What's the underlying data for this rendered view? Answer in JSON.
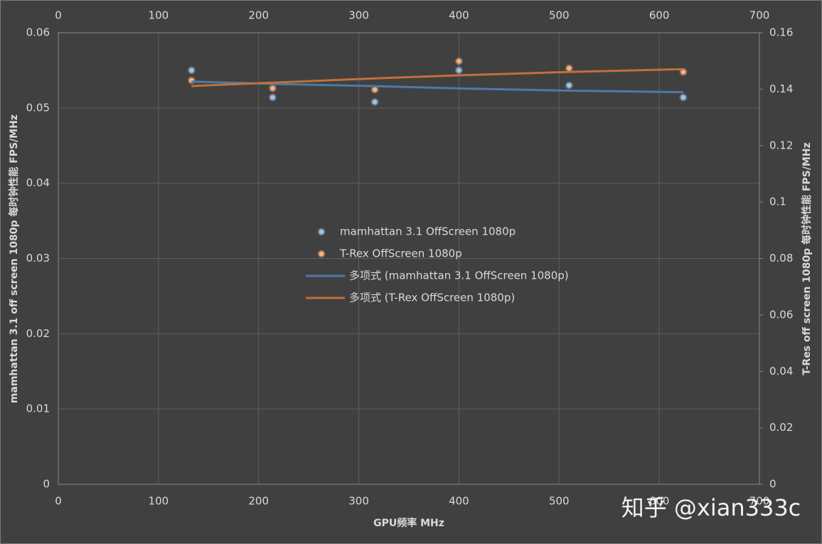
{
  "chart_data": {
    "type": "scatter",
    "xlabel": "GPU频率 MHz",
    "ylabel": "mamhattan 3.1 off screen 1080p 每时钟性能 FPS/MHz",
    "y2label": "T-Res off screen 1080p 每时钟性能 FPS/MHz",
    "xlim": [
      0,
      700
    ],
    "xticks": [
      0,
      100,
      200,
      300,
      400,
      500,
      600,
      700
    ],
    "ylim": [
      0,
      0.06
    ],
    "yticks": [
      0,
      0.01,
      0.02,
      0.03,
      0.04,
      0.05,
      0.06
    ],
    "y2lim": [
      0,
      0.16
    ],
    "y2ticks": [
      0,
      0.02,
      0.04,
      0.06,
      0.08,
      0.1,
      0.12,
      0.14,
      0.16
    ],
    "grid": true,
    "legend": "center",
    "series": [
      {
        "name": "mamhattan 3.1 OffScreen 1080p",
        "type": "scatter",
        "color": "#9dc3e6",
        "x": [
          133,
          214,
          316,
          400,
          510,
          624
        ],
        "values": [
          0.055,
          0.0514,
          0.0508,
          0.055,
          0.053,
          0.0514
        ]
      },
      {
        "name": "T-Rex OffScreen 1080p",
        "type": "scatter",
        "color": "#f4b183",
        "axis": "y2",
        "x": [
          133,
          214,
          316,
          400,
          510,
          624
        ],
        "values": [
          0.1431,
          0.1403,
          0.1398,
          0.1499,
          0.1474,
          0.1461
        ]
      },
      {
        "name": "多项式 (mamhattan 3.1 OffScreen 1080p)",
        "type": "line",
        "color": "#4e79a7",
        "x": [
          133,
          214,
          316,
          400,
          510,
          624
        ],
        "values": [
          0.0535,
          0.0532,
          0.0529,
          0.0526,
          0.0523,
          0.0521
        ]
      },
      {
        "name": "多项式 (T-Rex OffScreen 1080p)",
        "type": "line",
        "color": "#c0703a",
        "axis": "y2",
        "x": [
          133,
          214,
          316,
          400,
          510,
          624
        ],
        "values": [
          0.1411,
          0.1423,
          0.1438,
          0.1449,
          0.1461,
          0.1471
        ]
      }
    ],
    "watermark": "知乎 @xian333c"
  }
}
